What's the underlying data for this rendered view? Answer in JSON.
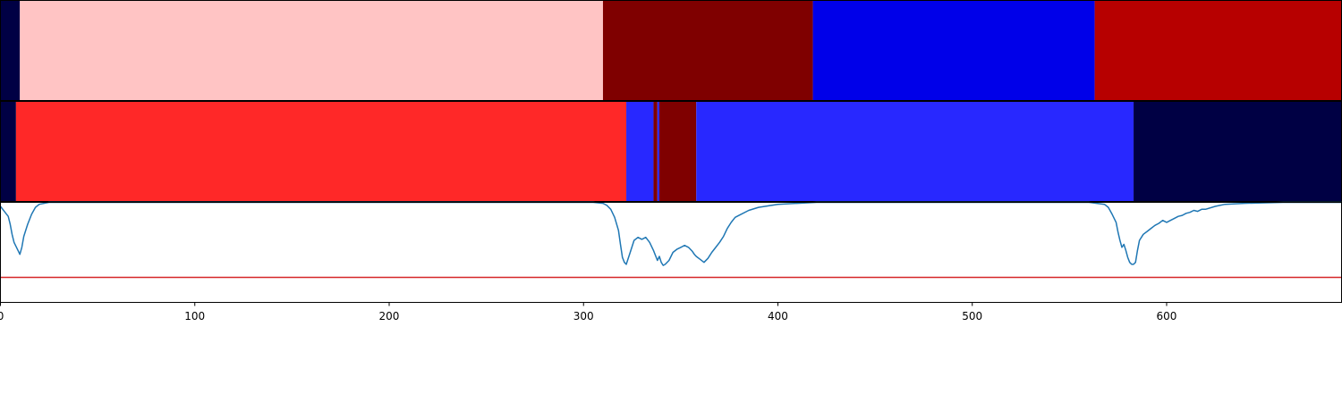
{
  "chart_data": [
    {
      "type": "heatmap",
      "segments": [
        {
          "start": 0,
          "end": 10,
          "color": "#000044"
        },
        {
          "start": 10,
          "end": 310,
          "color": "#ffc4c4"
        },
        {
          "start": 310,
          "end": 418,
          "color": "#7f0000"
        },
        {
          "start": 418,
          "end": 563,
          "color": "#0000e9"
        },
        {
          "start": 563,
          "end": 690,
          "color": "#b70000"
        }
      ]
    },
    {
      "type": "heatmap",
      "segments": [
        {
          "start": 0,
          "end": 8,
          "color": "#000044"
        },
        {
          "start": 8,
          "end": 322,
          "color": "#ff2828"
        },
        {
          "start": 322,
          "end": 336,
          "color": "#2828ff"
        },
        {
          "start": 336,
          "end": 338,
          "color": "#7f0000"
        },
        {
          "start": 338,
          "end": 339,
          "color": "#2828ff"
        },
        {
          "start": 339,
          "end": 358,
          "color": "#7f0000"
        },
        {
          "start": 358,
          "end": 583,
          "color": "#2828ff"
        },
        {
          "start": 583,
          "end": 690,
          "color": "#000044"
        }
      ]
    },
    {
      "type": "line",
      "x": [
        0,
        2,
        4,
        5,
        6,
        7,
        8,
        9,
        10,
        11,
        12,
        14,
        16,
        18,
        20,
        25,
        30,
        40,
        300,
        305,
        310,
        312,
        314,
        316,
        318,
        319,
        320,
        321,
        322,
        324,
        326,
        328,
        330,
        332,
        334,
        336,
        337,
        338,
        339,
        340,
        341,
        342,
        344,
        346,
        348,
        350,
        352,
        354,
        356,
        357,
        358,
        360,
        362,
        364,
        366,
        368,
        370,
        372,
        374,
        376,
        378,
        380,
        385,
        390,
        400,
        420,
        560,
        568,
        570,
        572,
        574,
        575,
        576,
        577,
        578,
        579,
        580,
        581,
        582,
        583,
        584,
        585,
        586,
        588,
        590,
        592,
        594,
        596,
        598,
        600,
        602,
        604,
        606,
        608,
        610,
        612,
        614,
        616,
        618,
        620,
        625,
        630,
        640,
        660,
        690
      ],
      "y": [
        0.96,
        0.91,
        0.86,
        0.78,
        0.68,
        0.6,
        0.56,
        0.52,
        0.48,
        0.55,
        0.66,
        0.78,
        0.88,
        0.95,
        0.98,
        1.0,
        1.0,
        1.0,
        1.0,
        1.0,
        0.99,
        0.97,
        0.93,
        0.85,
        0.72,
        0.58,
        0.45,
        0.4,
        0.38,
        0.5,
        0.62,
        0.65,
        0.63,
        0.65,
        0.6,
        0.52,
        0.47,
        0.42,
        0.46,
        0.4,
        0.37,
        0.38,
        0.42,
        0.5,
        0.53,
        0.55,
        0.57,
        0.55,
        0.51,
        0.48,
        0.46,
        0.43,
        0.4,
        0.44,
        0.5,
        0.55,
        0.6,
        0.66,
        0.74,
        0.8,
        0.85,
        0.87,
        0.92,
        0.95,
        0.98,
        1.0,
        1.0,
        0.98,
        0.95,
        0.88,
        0.8,
        0.7,
        0.62,
        0.55,
        0.58,
        0.52,
        0.45,
        0.4,
        0.38,
        0.38,
        0.4,
        0.52,
        0.62,
        0.68,
        0.71,
        0.74,
        0.77,
        0.79,
        0.82,
        0.8,
        0.82,
        0.84,
        0.86,
        0.87,
        0.89,
        0.9,
        0.92,
        0.91,
        0.93,
        0.93,
        0.96,
        0.98,
        0.99,
        1.0,
        1.0
      ],
      "threshold": 0.25,
      "xlim": [
        0,
        690
      ],
      "ylim": [
        0,
        1.0
      ],
      "line_color": "#1f77b4",
      "threshold_color": "#d62728",
      "xticks": [
        "0",
        "100",
        "200",
        "300",
        "400",
        "500",
        "600"
      ]
    }
  ]
}
